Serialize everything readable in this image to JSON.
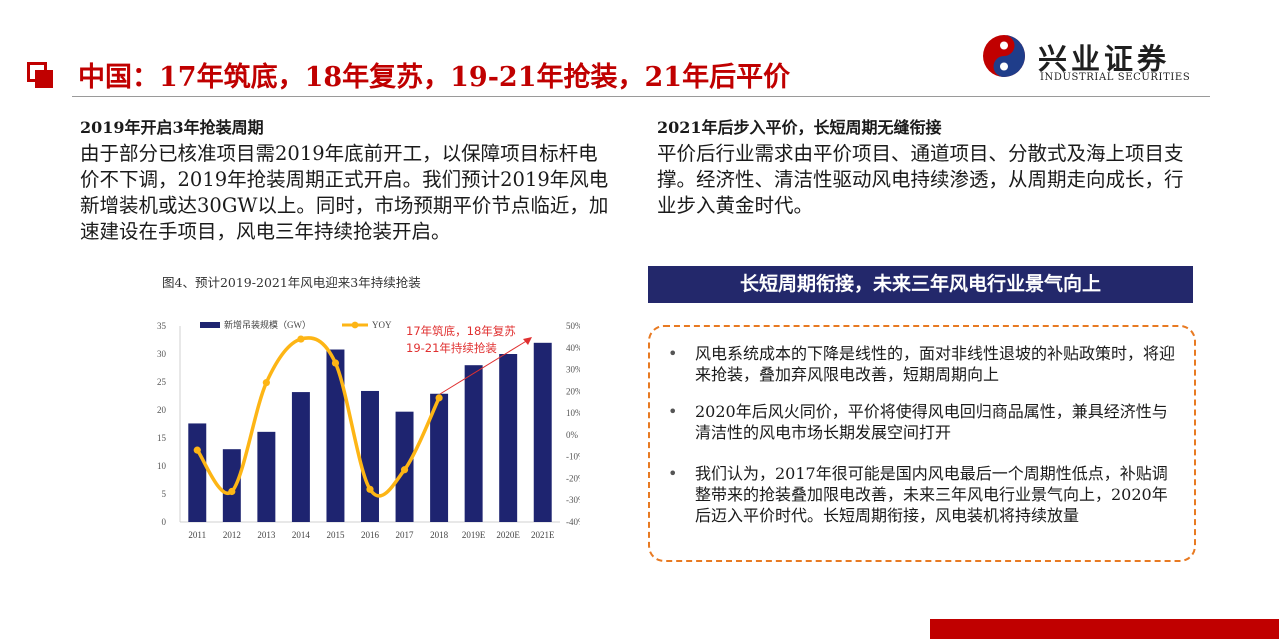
{
  "header": {
    "title": "中国：17年筑底，18年复苏，19-21年抢装，21年后平价",
    "logo_cn": "兴业证券",
    "logo_en": "INDUSTRIAL SECURITIES"
  },
  "left": {
    "heading": "2019年开启3年抢装周期",
    "body": "由于部分已核准项目需2019年底前开工，以保障项目标杆电价不下调，2019年抢装周期正式开启。我们预计2019年风电新增装机或达30GW以上。同时，市场预期平价节点临近，加速建设在手项目，风电三年持续抢装开启。"
  },
  "right": {
    "heading": "2021年后步入平价，长短周期无缝衔接",
    "body": "平价后行业需求由平价项目、通道项目、分散式及海上项目支撑。经济性、清洁性驱动风电持续渗透，从周期走向成长，行业步入黄金时代。"
  },
  "figure_caption": "图4、预计2019-2021年风电迎来3年持续抢装",
  "banner": "长短周期衔接，未来三年风电行业景气向上",
  "bullets": [
    {
      "dot": "•",
      "text": "风电系统成本的下降是线性的，面对非线性退坡的补贴政策时，将迎来抢装，叠加弃风限电改善，短期周期向上"
    },
    {
      "dot": "•",
      "text": "2020年后风火同价，平价将使得风电回归商品属性，兼具经济性与清洁性的风电市场长期发展空间打开"
    },
    {
      "dot": "•",
      "text": "我们认为，2017年很可能是国内风电最后一个周期性低点，补贴调整带来的抢装叠加限电改善，未来三年风电行业景气向上，2020年后迈入平价时代。长短周期衔接，风电装机将持续放量"
    }
  ],
  "chart_data": {
    "type": "bar",
    "categories": [
      "2011",
      "2012",
      "2013",
      "2014",
      "2015",
      "2016",
      "2017",
      "2018",
      "2019E",
      "2020E",
      "2021E"
    ],
    "series": [
      {
        "name": "新增吊装规模（GW）",
        "type": "bar",
        "axis": "left",
        "color": "#1e2470",
        "values": [
          17.6,
          13.0,
          16.1,
          23.2,
          30.8,
          23.4,
          19.7,
          22.9,
          28.0,
          30.0,
          32.0
        ]
      },
      {
        "name": "YOY",
        "type": "line",
        "axis": "right",
        "color": "#fdb515",
        "values": [
          -7,
          -26,
          24,
          44,
          33,
          -25,
          -16,
          17,
          null,
          null,
          null
        ]
      }
    ],
    "ylim": [
      0,
      35
    ],
    "yticks": [
      "0",
      "5",
      "10",
      "15",
      "20",
      "25",
      "30",
      "35"
    ],
    "y2lim": [
      -40,
      50
    ],
    "y2ticks": [
      "-40%",
      "-30%",
      "-20%",
      "-10%",
      "0%",
      "10%",
      "20%",
      "30%",
      "40%",
      "50%"
    ],
    "annotation_lines": [
      "17年筑底，18年复苏",
      "19-21年持续抢装"
    ],
    "annotation_color": "#e03030"
  }
}
